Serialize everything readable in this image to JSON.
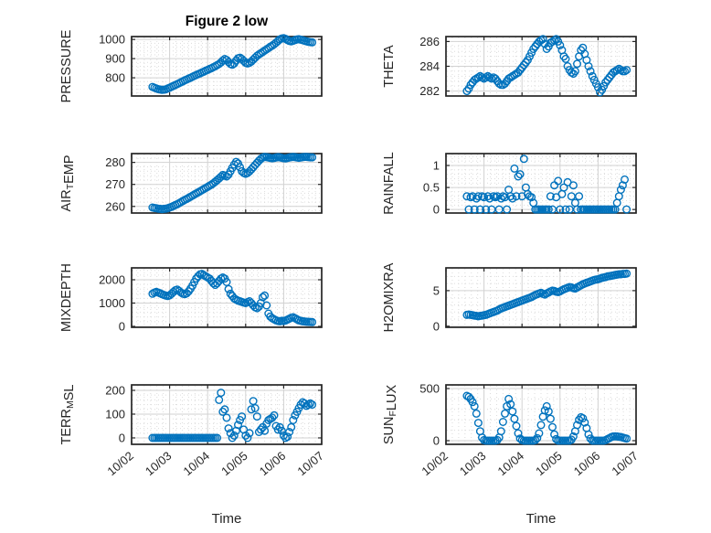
{
  "title": "Figure 2 low",
  "xlabel": "Time",
  "colors": {
    "marker": "#0072BD",
    "axis": "#262626",
    "major_grid": "#d2d2d2",
    "minor_grid": "#dcdcdc",
    "background": "#ffffff",
    "title_text": "#000000"
  },
  "chart_data": {
    "type": "scatter",
    "title": "Figure 2 low",
    "xlabel": "Time",
    "marker": "open-circle",
    "grid": "major-solid minor-dotted, box on, ticks inward all sides",
    "legend": "none",
    "x_axis": {
      "tick_labels": [
        "10/02",
        "10/03",
        "10/04",
        "10/05",
        "10/06",
        "10/07"
      ],
      "range_days": [
        0,
        5
      ],
      "minor_divisions_per_day": 6,
      "data_x_start": 0.55,
      "data_x_step": 0.05,
      "note": "x in days after 10/02; samples every 0.05 day from 10/02 13:12 to 10/06 18:00"
    },
    "plots": [
      {
        "name": "pressure",
        "row": 0,
        "col": 0,
        "ylabel_segments": [
          {
            "t": "PRESSURE"
          }
        ],
        "ylim": [
          705,
          1015
        ],
        "yticks": [
          800,
          900,
          1000
        ],
        "ytick_labels": [
          "800",
          "900",
          "1000"
        ],
        "minor_y_step": 20,
        "values": [
          752,
          748,
          744,
          741,
          739,
          737,
          738,
          740,
          744,
          748,
          753,
          758,
          762,
          767,
          772,
          777,
          782,
          787,
          791,
          796,
          800,
          805,
          810,
          814,
          819,
          823,
          828,
          832,
          837,
          841,
          846,
          850,
          855,
          860,
          866,
          872,
          880,
          890,
          898,
          893,
          882,
          872,
          868,
          875,
          890,
          902,
          905,
          898,
          888,
          878,
          875,
          878,
          885,
          895,
          905,
          915,
          922,
          928,
          935,
          942,
          948,
          955,
          962,
          968,
          975,
          983,
          992,
          1000,
          1005,
          1007,
          1003,
          997,
          992,
          990,
          993,
          997,
          1000,
          1001,
          999,
          996,
          993,
          990,
          988,
          986,
          985
        ]
      },
      {
        "name": "theta",
        "row": 0,
        "col": 1,
        "ylabel_segments": [
          {
            "t": "THETA"
          }
        ],
        "ylim": [
          281.6,
          286.4
        ],
        "yticks": [
          282,
          284,
          286
        ],
        "ytick_labels": [
          "282",
          "284",
          "286"
        ],
        "minor_y_step": 0.4,
        "values": [
          282.0,
          282.2,
          282.5,
          282.7,
          282.9,
          283.0,
          283.1,
          283.2,
          283.1,
          283.0,
          283.1,
          283.2,
          283.1,
          283.0,
          283.1,
          283.0,
          282.8,
          282.6,
          282.5,
          282.5,
          282.6,
          282.8,
          283.0,
          283.1,
          283.2,
          283.3,
          283.4,
          283.5,
          283.7,
          283.9,
          284.1,
          284.3,
          284.5,
          284.8,
          285.1,
          285.4,
          285.6,
          285.8,
          286.0,
          286.1,
          286.2,
          285.8,
          285.4,
          285.6,
          285.9,
          286.0,
          286.1,
          286.2,
          286.0,
          285.7,
          285.3,
          284.8,
          284.6,
          284.0,
          283.7,
          283.5,
          283.4,
          283.6,
          284.2,
          284.8,
          285.3,
          285.5,
          285.0,
          284.5,
          284.0,
          283.6,
          283.2,
          282.9,
          282.6,
          282.3,
          281.9,
          282.1,
          282.4,
          282.7,
          282.9,
          283.1,
          283.3,
          283.5,
          283.6,
          283.7,
          283.8,
          283.7,
          283.6,
          283.6,
          283.7
        ]
      },
      {
        "name": "air-temp",
        "row": 1,
        "col": 0,
        "ylabel_segments": [
          {
            "t": "AIR"
          },
          {
            "t": "T",
            "sub": true
          },
          {
            "t": "EMP"
          }
        ],
        "ylim": [
          257,
          284
        ],
        "yticks": [
          260,
          270,
          280
        ],
        "ytick_labels": [
          "260",
          "270",
          "280"
        ],
        "minor_y_step": 2,
        "values": [
          259.5,
          259.3,
          259.2,
          259.0,
          258.9,
          258.8,
          258.9,
          259.0,
          259.2,
          259.5,
          259.8,
          260.2,
          260.6,
          261.0,
          261.5,
          262.0,
          262.5,
          263.0,
          263.4,
          263.9,
          264.4,
          264.9,
          265.4,
          265.9,
          266.4,
          266.9,
          267.4,
          267.9,
          268.4,
          268.9,
          269.4,
          269.9,
          270.5,
          271.2,
          271.9,
          272.7,
          273.5,
          274.3,
          274.0,
          273.6,
          274.5,
          276.0,
          277.5,
          279.0,
          280.2,
          279.5,
          277.8,
          276.0,
          275.2,
          274.8,
          275.2,
          275.9,
          276.8,
          277.8,
          278.8,
          279.8,
          280.8,
          281.6,
          282.2,
          282.5,
          282.4,
          282.2,
          282.0,
          281.9,
          282.0,
          282.2,
          282.4,
          282.3,
          282.1,
          281.9,
          281.8,
          282.0,
          282.2,
          282.4,
          282.5,
          282.4,
          282.2,
          282.1,
          282.2,
          282.4,
          282.5,
          282.5,
          282.4,
          282.3,
          282.3
        ]
      },
      {
        "name": "rainfall",
        "row": 1,
        "col": 1,
        "ylabel_segments": [
          {
            "t": "RAINFALL"
          }
        ],
        "ylim": [
          -0.08,
          1.27
        ],
        "yticks": [
          0,
          0.5,
          1
        ],
        "ytick_labels": [
          "0",
          "0.5",
          "1"
        ],
        "minor_y_step": 0.1,
        "values": [
          0.3,
          0,
          0.28,
          0.3,
          0,
          0.25,
          0.3,
          0,
          0.3,
          0.28,
          0,
          0.3,
          0.25,
          0,
          0.3,
          0.28,
          0.3,
          0,
          0.25,
          0.3,
          0.28,
          0,
          0.45,
          0.3,
          0.25,
          0.93,
          0.3,
          0.75,
          0.8,
          0.3,
          1.15,
          0.5,
          0.35,
          0.3,
          0.28,
          0.15,
          0,
          0,
          0,
          0,
          0,
          0,
          0,
          0,
          0.3,
          0,
          0.55,
          0.28,
          0.65,
          0,
          0.35,
          0.5,
          0,
          0.62,
          0,
          0.3,
          0.55,
          0.15,
          0,
          0.3,
          0,
          0,
          0,
          0,
          0,
          0,
          0,
          0,
          0,
          0,
          0,
          0,
          0,
          0,
          0,
          0,
          0,
          0,
          0,
          0.15,
          0.3,
          0.45,
          0.55,
          0.68,
          0
        ]
      },
      {
        "name": "mixdepth",
        "row": 2,
        "col": 0,
        "ylabel_segments": [
          {
            "t": "MIXDEPTH"
          }
        ],
        "ylim": [
          -40,
          2510
        ],
        "yticks": [
          0,
          1000,
          2000
        ],
        "ytick_labels": [
          "0",
          "1000",
          "2000"
        ],
        "minor_y_step": 200,
        "values": [
          1400,
          1450,
          1480,
          1450,
          1420,
          1380,
          1350,
          1320,
          1300,
          1330,
          1400,
          1480,
          1550,
          1580,
          1520,
          1450,
          1400,
          1380,
          1420,
          1500,
          1620,
          1750,
          1900,
          2050,
          2150,
          2230,
          2250,
          2200,
          2150,
          2100,
          2050,
          1950,
          1850,
          1780,
          1850,
          1950,
          2050,
          2100,
          2050,
          1900,
          1600,
          1400,
          1300,
          1200,
          1150,
          1100,
          1080,
          1050,
          1020,
          1000,
          1040,
          1080,
          1000,
          900,
          820,
          780,
          850,
          1000,
          1250,
          1320,
          900,
          550,
          420,
          350,
          300,
          260,
          230,
          220,
          240,
          230,
          250,
          290,
          330,
          370,
          390,
          350,
          300,
          260,
          240,
          220,
          210,
          200,
          195,
          190,
          185
        ]
      },
      {
        "name": "h2omixra",
        "row": 2,
        "col": 1,
        "ylabel_segments": [
          {
            "t": "H2OMIXRA"
          }
        ],
        "ylim": [
          -0.15,
          8.2
        ],
        "yticks": [
          0,
          5
        ],
        "ytick_labels": [
          "0",
          "5"
        ],
        "minor_y_step": 1,
        "values": [
          1.6,
          1.65,
          1.6,
          1.55,
          1.5,
          1.45,
          1.4,
          1.45,
          1.5,
          1.55,
          1.6,
          1.7,
          1.8,
          1.9,
          2.0,
          2.1,
          2.2,
          2.35,
          2.5,
          2.6,
          2.7,
          2.8,
          2.9,
          3.0,
          3.1,
          3.2,
          3.3,
          3.4,
          3.5,
          3.6,
          3.7,
          3.8,
          3.9,
          4.0,
          4.1,
          4.25,
          4.4,
          4.5,
          4.6,
          4.7,
          4.55,
          4.45,
          4.6,
          4.75,
          4.9,
          5.0,
          4.95,
          4.85,
          4.8,
          4.9,
          5.05,
          5.2,
          5.3,
          5.4,
          5.5,
          5.45,
          5.35,
          5.3,
          5.45,
          5.6,
          5.75,
          5.9,
          6.0,
          6.1,
          6.2,
          6.3,
          6.4,
          6.5,
          6.55,
          6.6,
          6.7,
          6.8,
          6.85,
          6.9,
          7.0,
          7.05,
          7.1,
          7.15,
          7.2,
          7.25,
          7.3,
          7.3,
          7.35,
          7.35,
          7.4
        ]
      },
      {
        "name": "terr-msl",
        "row": 3,
        "col": 0,
        "ylabel_segments": [
          {
            "t": "TERR"
          },
          {
            "t": "M",
            "sub": true
          },
          {
            "t": "SL"
          }
        ],
        "ylim": [
          -27,
          223
        ],
        "yticks": [
          0,
          100,
          200
        ],
        "ytick_labels": [
          "0",
          "100",
          "200"
        ],
        "minor_y_step": 20,
        "values": [
          0,
          0,
          0,
          0,
          0,
          0,
          0,
          0,
          0,
          0,
          0,
          0,
          0,
          0,
          0,
          0,
          0,
          0,
          0,
          0,
          0,
          0,
          0,
          0,
          0,
          0,
          0,
          0,
          0,
          0,
          0,
          0,
          0,
          0,
          0,
          160,
          190,
          110,
          120,
          85,
          40,
          20,
          0,
          10,
          30,
          55,
          75,
          90,
          35,
          10,
          0,
          20,
          120,
          155,
          125,
          90,
          25,
          35,
          45,
          30,
          60,
          75,
          80,
          85,
          95,
          50,
          35,
          45,
          30,
          10,
          0,
          5,
          25,
          45,
          75,
          95,
          110,
          125,
          140,
          150,
          145,
          135,
          140,
          145,
          140
        ]
      },
      {
        "name": "sun-flux",
        "row": 3,
        "col": 1,
        "ylabel_segments": [
          {
            "t": "SUN"
          },
          {
            "t": "F",
            "sub": true
          },
          {
            "t": "LUX"
          }
        ],
        "ylim": [
          -35,
          535
        ],
        "yticks": [
          0,
          500
        ],
        "ytick_labels": [
          "0",
          "500"
        ],
        "minor_y_step": 100,
        "values": [
          430,
          420,
          400,
          370,
          330,
          260,
          170,
          90,
          30,
          5,
          0,
          0,
          0,
          0,
          0,
          0,
          5,
          30,
          90,
          180,
          260,
          330,
          400,
          350,
          280,
          210,
          140,
          70,
          20,
          5,
          0,
          0,
          0,
          0,
          0,
          0,
          5,
          25,
          70,
          150,
          230,
          290,
          330,
          280,
          210,
          130,
          60,
          15,
          0,
          0,
          0,
          0,
          0,
          0,
          0,
          10,
          40,
          90,
          150,
          200,
          225,
          215,
          175,
          120,
          60,
          20,
          0,
          0,
          0,
          0,
          0,
          0,
          0,
          5,
          15,
          25,
          35,
          40,
          42,
          40,
          38,
          35,
          30,
          25,
          20
        ]
      }
    ]
  }
}
